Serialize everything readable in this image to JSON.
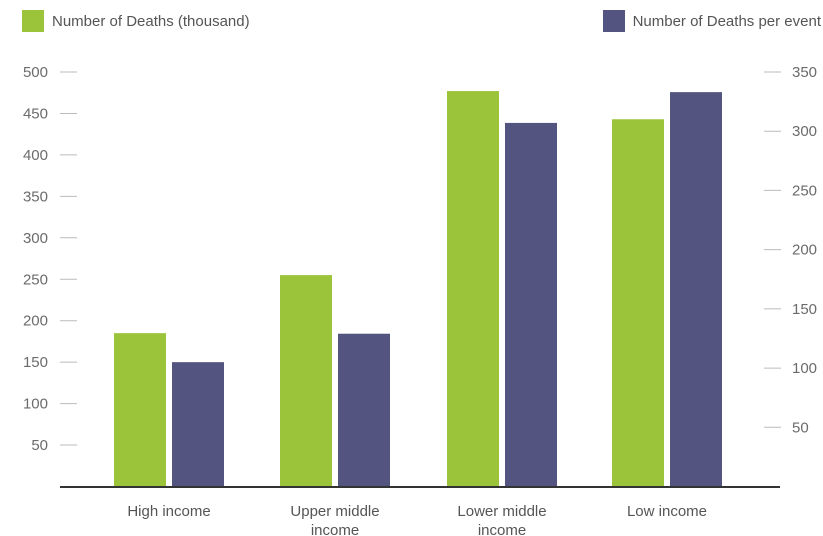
{
  "chart_data": {
    "type": "bar",
    "categories": [
      [
        "High income"
      ],
      [
        "Upper middle",
        "income"
      ],
      [
        "Lower middle",
        "income"
      ],
      [
        "Low income"
      ]
    ],
    "series": [
      {
        "name": "Number of Deaths (thousand)",
        "axis": "left",
        "color": "#9bc43b",
        "values": [
          185,
          255,
          477,
          443
        ]
      },
      {
        "name": "Number of Deaths per event",
        "axis": "right",
        "color": "#545480",
        "values": [
          105,
          129,
          307,
          333
        ]
      }
    ],
    "y_left": {
      "ylim": [
        0,
        500
      ],
      "ticks": [
        50,
        100,
        150,
        200,
        250,
        300,
        350,
        400,
        450,
        500
      ]
    },
    "y_right": {
      "ylim": [
        0,
        350
      ],
      "ticks": [
        50,
        100,
        150,
        200,
        250,
        300,
        350
      ]
    },
    "legend_placement": "top",
    "grid": false,
    "baseline_color": "#333333",
    "tick_color": "#bbbbbb"
  }
}
